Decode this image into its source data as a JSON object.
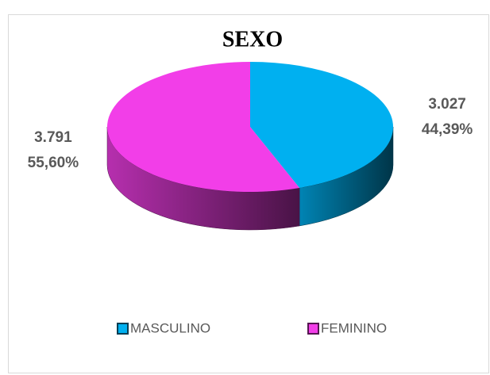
{
  "chart_data": {
    "type": "pie",
    "title": "SEXO",
    "categories": [
      "MASCULINO",
      "FEMININO"
    ],
    "values": [
      3027,
      3791
    ],
    "value_labels": [
      "3.027",
      "3.791"
    ],
    "percentages": [
      44.39,
      55.6
    ],
    "percentage_labels": [
      "44,39%",
      "55,60%"
    ],
    "colors": [
      "#00b0f0",
      "#f23ee8"
    ],
    "legend": "bottom"
  }
}
